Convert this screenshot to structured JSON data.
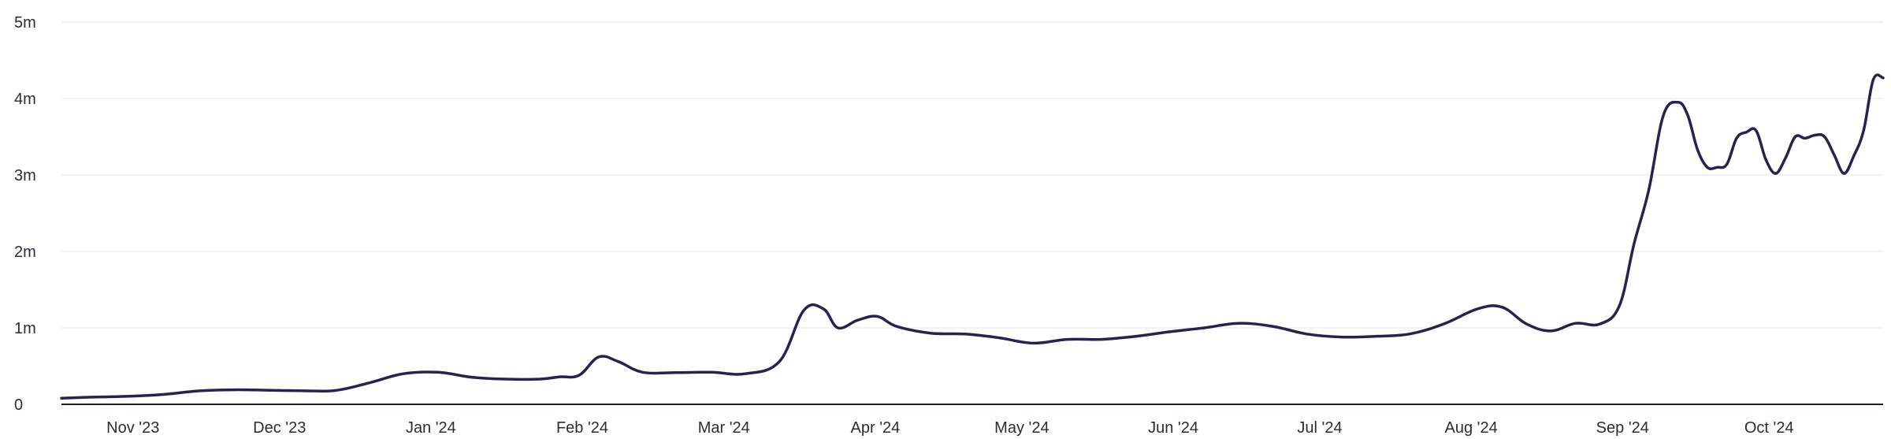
{
  "chart_data": {
    "type": "line",
    "title": "",
    "xlabel": "",
    "ylabel": "",
    "ylim": [
      0,
      5000000
    ],
    "xlim": [
      "2023-10-18",
      "2024-10-25"
    ],
    "grid": true,
    "legend": "none",
    "colors": {
      "line": "#2a2152",
      "grid": "#e6e6ea",
      "axis": "#1c1c2a",
      "text": "#2b2b3a"
    },
    "y_ticks": [
      {
        "value": 0,
        "label": "0"
      },
      {
        "value": 1000000,
        "label": "1m"
      },
      {
        "value": 2000000,
        "label": "2m"
      },
      {
        "value": 3000000,
        "label": "3m"
      },
      {
        "value": 4000000,
        "label": "4m"
      },
      {
        "value": 5000000,
        "label": "5m"
      }
    ],
    "x_ticks": [
      {
        "value": "2023-11-01",
        "label": "Nov '23"
      },
      {
        "value": "2023-12-01",
        "label": "Dec '23"
      },
      {
        "value": "2024-01-01",
        "label": "Jan '24"
      },
      {
        "value": "2024-02-01",
        "label": "Feb '24"
      },
      {
        "value": "2024-03-01",
        "label": "Mar '24"
      },
      {
        "value": "2024-04-01",
        "label": "Apr '24"
      },
      {
        "value": "2024-05-01",
        "label": "May '24"
      },
      {
        "value": "2024-06-01",
        "label": "Jun '24"
      },
      {
        "value": "2024-07-01",
        "label": "Jul '24"
      },
      {
        "value": "2024-08-01",
        "label": "Aug '24"
      },
      {
        "value": "2024-09-01",
        "label": "Sep '24"
      },
      {
        "value": "2024-10-01",
        "label": "Oct '24"
      }
    ],
    "series": [
      {
        "x": [
          "2023-10-18",
          "2023-10-25",
          "2023-11-01",
          "2023-11-08",
          "2023-11-15",
          "2023-11-22",
          "2023-11-29",
          "2023-12-06",
          "2023-12-13",
          "2023-12-20",
          "2023-12-27",
          "2024-01-03",
          "2024-01-10",
          "2024-01-17",
          "2024-01-24",
          "2024-01-28",
          "2024-02-01",
          "2024-02-05",
          "2024-02-09",
          "2024-02-14",
          "2024-02-21",
          "2024-02-28",
          "2024-03-06",
          "2024-03-13",
          "2024-03-18",
          "2024-03-22",
          "2024-03-25",
          "2024-03-29",
          "2024-04-02",
          "2024-04-06",
          "2024-04-13",
          "2024-04-20",
          "2024-04-27",
          "2024-05-04",
          "2024-05-11",
          "2024-05-18",
          "2024-05-25",
          "2024-06-01",
          "2024-06-08",
          "2024-06-15",
          "2024-06-22",
          "2024-06-29",
          "2024-07-06",
          "2024-07-13",
          "2024-07-20",
          "2024-07-27",
          "2024-08-03",
          "2024-08-08",
          "2024-08-13",
          "2024-08-18",
          "2024-08-23",
          "2024-08-28",
          "2024-09-01",
          "2024-09-04",
          "2024-09-07",
          "2024-09-10",
          "2024-09-13",
          "2024-09-15",
          "2024-09-17",
          "2024-09-19",
          "2024-09-21",
          "2024-09-23",
          "2024-09-25",
          "2024-09-27",
          "2024-09-29",
          "2024-10-01",
          "2024-10-03",
          "2024-10-05",
          "2024-10-07",
          "2024-10-09",
          "2024-10-11",
          "2024-10-13",
          "2024-10-15",
          "2024-10-17",
          "2024-10-19",
          "2024-10-21",
          "2024-10-23",
          "2024-10-25"
        ],
        "y": [
          80000,
          95000,
          105000,
          130000,
          175000,
          190000,
          185000,
          178000,
          180000,
          280000,
          400000,
          420000,
          355000,
          330000,
          330000,
          360000,
          380000,
          620000,
          560000,
          420000,
          415000,
          420000,
          400000,
          560000,
          1230000,
          1250000,
          1000000,
          1100000,
          1150000,
          1020000,
          930000,
          920000,
          870000,
          800000,
          850000,
          850000,
          890000,
          950000,
          1000000,
          1060000,
          1020000,
          920000,
          880000,
          890000,
          920000,
          1050000,
          1250000,
          1270000,
          1050000,
          960000,
          1060000,
          1050000,
          1290000,
          2100000,
          2800000,
          3780000,
          3950000,
          3780000,
          3330000,
          3100000,
          3100000,
          3140000,
          3480000,
          3560000,
          3580000,
          3200000,
          3020000,
          3220000,
          3500000,
          3480000,
          3520000,
          3500000,
          3260000,
          3020000,
          3250000,
          3580000,
          4250000,
          4270000
        ]
      }
    ]
  }
}
